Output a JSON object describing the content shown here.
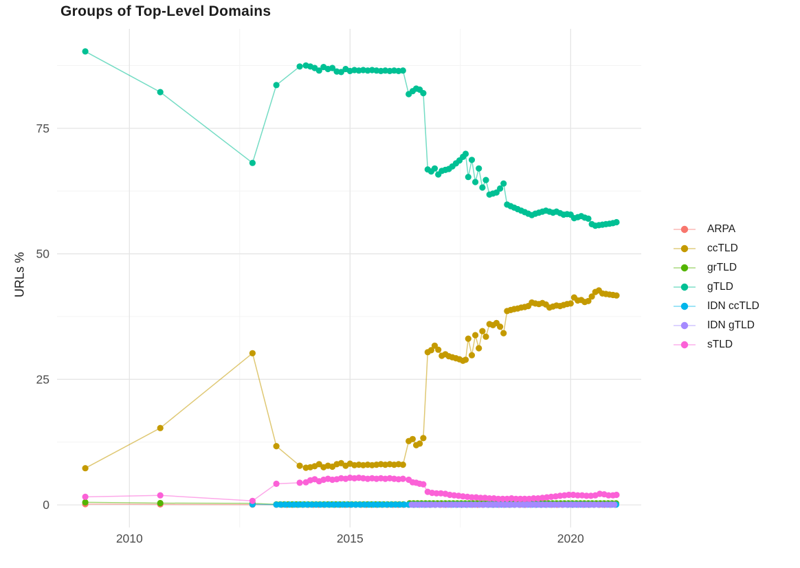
{
  "chart_data": {
    "type": "line",
    "title": "Groups of Top-Level Domains",
    "xlabel": "",
    "ylabel": "URLs %",
    "grid": true,
    "legend_position": "right",
    "xlim": [
      2008.36,
      2021.6
    ],
    "ylim": [
      -4.5,
      94.8
    ],
    "x_ticks": {
      "major": [
        {
          "value": 2010,
          "label": "2010"
        },
        {
          "value": 2015,
          "label": "2015"
        },
        {
          "value": 2020,
          "label": "2020"
        }
      ],
      "minor": [
        2012.5,
        2017.5
      ]
    },
    "y_ticks": {
      "major": [
        {
          "value": 0,
          "label": "0"
        },
        {
          "value": 25,
          "label": "25"
        },
        {
          "value": 50,
          "label": "50"
        },
        {
          "value": 75,
          "label": "75"
        }
      ],
      "minor": [
        12.5,
        37.5,
        62.5,
        87.5
      ]
    },
    "series": [
      {
        "name": "ARPA",
        "color": "#F8766D",
        "points": [
          [
            2009,
            0.15
          ],
          [
            2010.7,
            0.1
          ],
          [
            2012.79,
            0.05
          ]
        ],
        "runs": [
          {
            "from": 2013.33,
            "to": 2021.04,
            "step": 0.12,
            "value": 0.03
          }
        ]
      },
      {
        "name": "ccTLD",
        "color": "#C49A00",
        "points": [
          [
            2009,
            7.3
          ],
          [
            2010.7,
            15.3
          ],
          [
            2012.79,
            30.2
          ],
          [
            2013.33,
            11.7
          ],
          [
            2013.86,
            7.8
          ],
          [
            2014,
            7.4
          ],
          [
            2014.1,
            7.5
          ],
          [
            2014.2,
            7.7
          ],
          [
            2014.3,
            8.1
          ],
          [
            2014.4,
            7.5
          ],
          [
            2014.5,
            7.8
          ],
          [
            2014.6,
            7.6
          ],
          [
            2014.7,
            8.1
          ],
          [
            2014.8,
            8.3
          ],
          [
            2014.9,
            7.8
          ],
          [
            2015,
            8.2
          ],
          [
            2015.1,
            7.9
          ],
          [
            2015.2,
            8
          ],
          [
            2015.3,
            7.9
          ],
          [
            2015.4,
            8
          ],
          [
            2015.5,
            7.9
          ],
          [
            2015.6,
            8
          ],
          [
            2015.7,
            8.1
          ],
          [
            2015.8,
            8
          ],
          [
            2015.9,
            8.1
          ],
          [
            2016,
            8
          ],
          [
            2016.1,
            8.1
          ],
          [
            2016.2,
            8
          ],
          [
            2016.33,
            12.7
          ],
          [
            2016.42,
            13.1
          ],
          [
            2016.5,
            11.9
          ],
          [
            2016.58,
            12.2
          ],
          [
            2016.66,
            13.3
          ],
          [
            2016.76,
            30.4
          ],
          [
            2016.84,
            30.8
          ],
          [
            2016.92,
            31.7
          ],
          [
            2017,
            30.9
          ],
          [
            2017.08,
            29.7
          ],
          [
            2017.16,
            30
          ],
          [
            2017.24,
            29.6
          ],
          [
            2017.32,
            29.4
          ],
          [
            2017.4,
            29.2
          ],
          [
            2017.48,
            29
          ],
          [
            2017.56,
            28.7
          ],
          [
            2017.62,
            28.9
          ],
          [
            2017.68,
            33.1
          ],
          [
            2017.76,
            29.8
          ],
          [
            2017.84,
            33.8
          ],
          [
            2017.92,
            31.2
          ],
          [
            2018,
            34.6
          ],
          [
            2018.08,
            33.5
          ],
          [
            2018.16,
            36
          ],
          [
            2018.24,
            35.8
          ],
          [
            2018.32,
            36.2
          ],
          [
            2018.4,
            35.5
          ],
          [
            2018.48,
            34.2
          ],
          [
            2018.56,
            38.6
          ],
          [
            2018.64,
            38.8
          ],
          [
            2018.72,
            39
          ],
          [
            2018.8,
            39.1
          ],
          [
            2018.88,
            39.3
          ],
          [
            2018.96,
            39.4
          ],
          [
            2019.04,
            39.6
          ],
          [
            2019.12,
            40.3
          ],
          [
            2019.2,
            40.1
          ],
          [
            2019.28,
            40
          ],
          [
            2019.36,
            40.2
          ],
          [
            2019.44,
            39.9
          ],
          [
            2019.52,
            39.3
          ],
          [
            2019.6,
            39.5
          ],
          [
            2019.68,
            39.7
          ],
          [
            2019.76,
            39.6
          ],
          [
            2019.84,
            39.8
          ],
          [
            2019.92,
            40
          ],
          [
            2020,
            40.1
          ],
          [
            2020.08,
            41.3
          ],
          [
            2020.16,
            40.7
          ],
          [
            2020.24,
            40.8
          ],
          [
            2020.32,
            40.4
          ],
          [
            2020.4,
            40.6
          ],
          [
            2020.48,
            41.5
          ],
          [
            2020.56,
            42.4
          ],
          [
            2020.64,
            42.7
          ],
          [
            2020.72,
            42.1
          ],
          [
            2020.8,
            42
          ],
          [
            2020.88,
            41.9
          ],
          [
            2020.96,
            41.8
          ],
          [
            2021.04,
            41.7
          ]
        ]
      },
      {
        "name": "grTLD",
        "color": "#53B400",
        "points": [
          [
            2009,
            0.5
          ],
          [
            2010.7,
            0.35
          ],
          [
            2012.79,
            0.3
          ]
        ],
        "runs": [
          {
            "from": 2013.33,
            "to": 2016.26,
            "step": 0.09,
            "value": 0.1
          },
          {
            "from": 2016.35,
            "to": 2021.04,
            "step": 0.09,
            "value": 0.3
          }
        ]
      },
      {
        "name": "gTLD",
        "color": "#00C094",
        "points": [
          [
            2009,
            90.3
          ],
          [
            2010.7,
            82.2
          ],
          [
            2012.79,
            68.1
          ],
          [
            2013.33,
            83.6
          ],
          [
            2013.86,
            87.3
          ],
          [
            2014,
            87.5
          ],
          [
            2014.1,
            87.3
          ],
          [
            2014.2,
            87
          ],
          [
            2014.3,
            86.5
          ],
          [
            2014.4,
            87.2
          ],
          [
            2014.5,
            86.8
          ],
          [
            2014.6,
            87
          ],
          [
            2014.7,
            86.3
          ],
          [
            2014.8,
            86.2
          ],
          [
            2014.9,
            86.8
          ],
          [
            2015,
            86.4
          ],
          [
            2015.1,
            86.6
          ],
          [
            2015.2,
            86.5
          ],
          [
            2015.3,
            86.6
          ],
          [
            2015.4,
            86.5
          ],
          [
            2015.5,
            86.6
          ],
          [
            2015.6,
            86.5
          ],
          [
            2015.7,
            86.4
          ],
          [
            2015.8,
            86.5
          ],
          [
            2015.9,
            86.4
          ],
          [
            2016,
            86.5
          ],
          [
            2016.1,
            86.4
          ],
          [
            2016.2,
            86.5
          ],
          [
            2016.33,
            81.8
          ],
          [
            2016.42,
            82.4
          ],
          [
            2016.5,
            82.9
          ],
          [
            2016.58,
            82.7
          ],
          [
            2016.66,
            82
          ],
          [
            2016.76,
            66.8
          ],
          [
            2016.84,
            66.4
          ],
          [
            2016.92,
            67
          ],
          [
            2017,
            65.8
          ],
          [
            2017.08,
            66.5
          ],
          [
            2017.16,
            66.7
          ],
          [
            2017.24,
            66.9
          ],
          [
            2017.32,
            67.4
          ],
          [
            2017.4,
            68
          ],
          [
            2017.48,
            68.6
          ],
          [
            2017.56,
            69.3
          ],
          [
            2017.62,
            69.9
          ],
          [
            2017.68,
            65.3
          ],
          [
            2017.76,
            68.7
          ],
          [
            2017.84,
            64.3
          ],
          [
            2017.92,
            67
          ],
          [
            2018,
            63.2
          ],
          [
            2018.08,
            64.7
          ],
          [
            2018.16,
            61.8
          ],
          [
            2018.24,
            62
          ],
          [
            2018.32,
            62.2
          ],
          [
            2018.4,
            63
          ],
          [
            2018.48,
            64
          ],
          [
            2018.56,
            59.8
          ],
          [
            2018.64,
            59.5
          ],
          [
            2018.72,
            59.2
          ],
          [
            2018.8,
            58.9
          ],
          [
            2018.88,
            58.6
          ],
          [
            2018.96,
            58.3
          ],
          [
            2019.04,
            58
          ],
          [
            2019.12,
            57.7
          ],
          [
            2019.2,
            58
          ],
          [
            2019.28,
            58.2
          ],
          [
            2019.36,
            58.4
          ],
          [
            2019.44,
            58.6
          ],
          [
            2019.52,
            58.4
          ],
          [
            2019.6,
            58.2
          ],
          [
            2019.68,
            58.4
          ],
          [
            2019.76,
            58.1
          ],
          [
            2019.84,
            57.8
          ],
          [
            2019.92,
            57.9
          ],
          [
            2020,
            57.8
          ],
          [
            2020.08,
            57.1
          ],
          [
            2020.16,
            57.3
          ],
          [
            2020.24,
            57.5
          ],
          [
            2020.32,
            57.2
          ],
          [
            2020.4,
            57
          ],
          [
            2020.48,
            55.9
          ],
          [
            2020.56,
            55.6
          ],
          [
            2020.64,
            55.7
          ],
          [
            2020.72,
            55.8
          ],
          [
            2020.8,
            55.9
          ],
          [
            2020.88,
            56
          ],
          [
            2020.96,
            56.1
          ],
          [
            2021.04,
            56.3
          ]
        ]
      },
      {
        "name": "IDN ccTLD",
        "color": "#00B6EB",
        "points": [
          [
            2012.79,
            0.1
          ]
        ],
        "runs": [
          {
            "from": 2013.33,
            "to": 2021.04,
            "step": 0.1,
            "value": 0.06
          }
        ]
      },
      {
        "name": "IDN gTLD",
        "color": "#A58AFF",
        "points": [],
        "runs": [
          {
            "from": 2016.4,
            "to": 2021.04,
            "step": 0.09,
            "value": 0.05
          }
        ]
      },
      {
        "name": "sTLD",
        "color": "#FB61D7",
        "points": [
          [
            2009,
            1.6
          ],
          [
            2010.7,
            1.9
          ],
          [
            2012.79,
            0.8
          ],
          [
            2013.33,
            4.2
          ],
          [
            2013.86,
            4.4
          ],
          [
            2014,
            4.5
          ],
          [
            2014.1,
            4.9
          ],
          [
            2014.2,
            5.1
          ],
          [
            2014.3,
            4.7
          ],
          [
            2014.4,
            5
          ],
          [
            2014.5,
            5.2
          ],
          [
            2014.6,
            5
          ],
          [
            2014.7,
            5.1
          ],
          [
            2014.8,
            5.3
          ],
          [
            2014.9,
            5.2
          ],
          [
            2015,
            5.4
          ],
          [
            2015.1,
            5.3
          ],
          [
            2015.2,
            5.4
          ],
          [
            2015.3,
            5.3
          ],
          [
            2015.4,
            5.2
          ],
          [
            2015.5,
            5.3
          ],
          [
            2015.6,
            5.2
          ],
          [
            2015.7,
            5.3
          ],
          [
            2015.8,
            5.2
          ],
          [
            2015.9,
            5.3
          ],
          [
            2016,
            5.2
          ],
          [
            2016.1,
            5.1
          ],
          [
            2016.2,
            5.2
          ],
          [
            2016.33,
            5
          ],
          [
            2016.42,
            4.5
          ],
          [
            2016.5,
            4.4
          ],
          [
            2016.58,
            4.2
          ],
          [
            2016.66,
            4.1
          ],
          [
            2016.76,
            2.6
          ],
          [
            2016.86,
            2.4
          ],
          [
            2016.96,
            2.3
          ],
          [
            2017.06,
            2.3
          ],
          [
            2017.16,
            2.2
          ],
          [
            2017.26,
            2
          ],
          [
            2017.36,
            1.9
          ],
          [
            2017.46,
            1.8
          ],
          [
            2017.56,
            1.7
          ],
          [
            2017.66,
            1.6
          ],
          [
            2017.76,
            1.5
          ],
          [
            2017.86,
            1.5
          ],
          [
            2017.96,
            1.4
          ],
          [
            2018.06,
            1.4
          ],
          [
            2018.16,
            1.3
          ],
          [
            2018.26,
            1.3
          ],
          [
            2018.36,
            1.2
          ],
          [
            2018.46,
            1.2
          ],
          [
            2018.56,
            1.2
          ],
          [
            2018.66,
            1.3
          ],
          [
            2018.76,
            1.2
          ],
          [
            2018.86,
            1.2
          ],
          [
            2018.96,
            1.2
          ],
          [
            2019.06,
            1.2
          ],
          [
            2019.16,
            1.3
          ],
          [
            2019.26,
            1.3
          ],
          [
            2019.36,
            1.4
          ],
          [
            2019.46,
            1.5
          ],
          [
            2019.56,
            1.6
          ],
          [
            2019.66,
            1.7
          ],
          [
            2019.76,
            1.8
          ],
          [
            2019.86,
            1.9
          ],
          [
            2019.96,
            2
          ],
          [
            2020.06,
            2
          ],
          [
            2020.16,
            1.9
          ],
          [
            2020.26,
            1.9
          ],
          [
            2020.36,
            1.8
          ],
          [
            2020.46,
            1.8
          ],
          [
            2020.56,
            1.9
          ],
          [
            2020.66,
            2.2
          ],
          [
            2020.76,
            2.1
          ],
          [
            2020.86,
            1.9
          ],
          [
            2020.96,
            1.9
          ],
          [
            2021.04,
            2
          ]
        ]
      }
    ]
  },
  "style": {
    "background": "#FFFFFF",
    "grid_major": "#E5E5E5",
    "grid_minor": "#F3F3F3",
    "tick_text": "#4D4D4D",
    "title_text": "#1C1C1C",
    "label_text": "#1A1A1A"
  }
}
